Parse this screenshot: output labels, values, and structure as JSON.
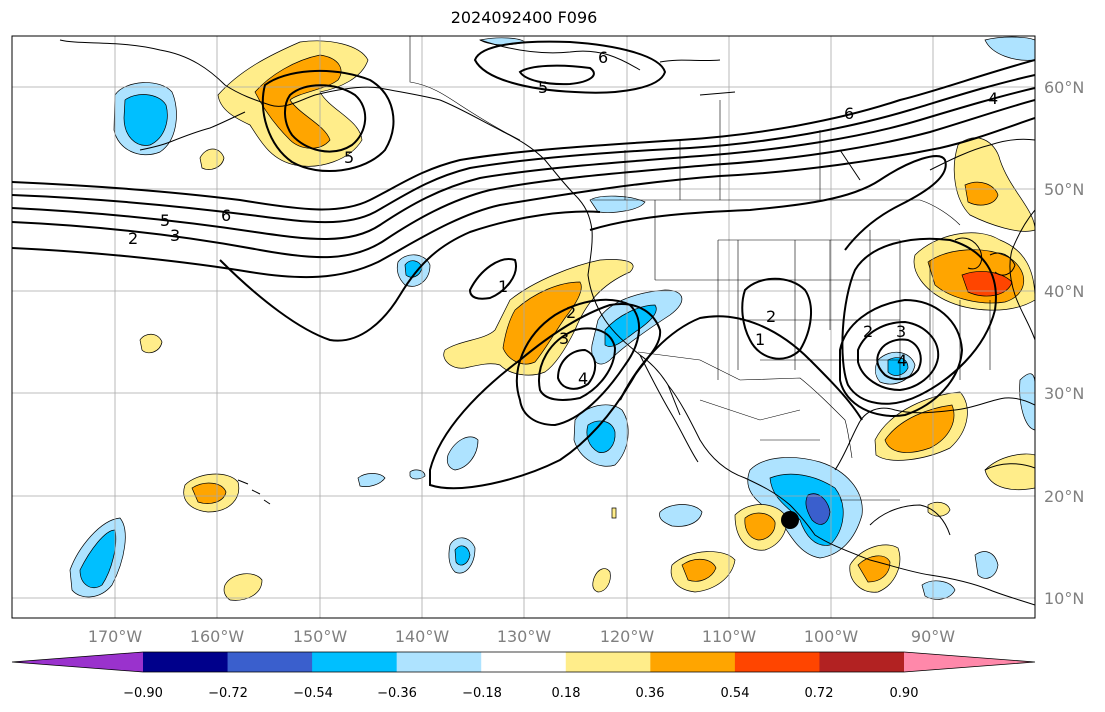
{
  "title": "2024092400 F096",
  "longitude_labels": [
    "170°W",
    "160°W",
    "150°W",
    "140°W",
    "130°W",
    "120°W",
    "110°W",
    "100°W",
    "90°W"
  ],
  "latitude_labels": [
    "10°N",
    "20°N",
    "30°N",
    "40°N",
    "50°N",
    "60°N"
  ],
  "colorbar": {
    "tick_labels": [
      "−0.90",
      "−0.72",
      "−0.54",
      "−0.36",
      "−0.18",
      "0.18",
      "0.36",
      "0.54",
      "0.72",
      "0.90"
    ],
    "colors": [
      "#9a32cd",
      "#00008b",
      "#3a5fcd",
      "#00bfff",
      "#aee3ff",
      "#ffffff",
      "#ffed8a",
      "#ffa500",
      "#ff4500",
      "#b22222",
      "#ff88aa"
    ]
  },
  "contour_labels": [
    "6",
    "5",
    "5",
    "6",
    "4",
    "6",
    "5",
    "2",
    "3",
    "1",
    "2",
    "3",
    "4",
    "2",
    "1",
    "2",
    "3",
    "4"
  ],
  "colors": {
    "positive_light": "#ffed8a",
    "positive_mid": "#ffa500",
    "positive_strong": "#ff4500",
    "negative_light": "#aee3ff",
    "negative_mid": "#00bfff",
    "negative_strong": "#3a5fcd",
    "grid": "#a9a9a9",
    "axis_label": "#808080"
  }
}
